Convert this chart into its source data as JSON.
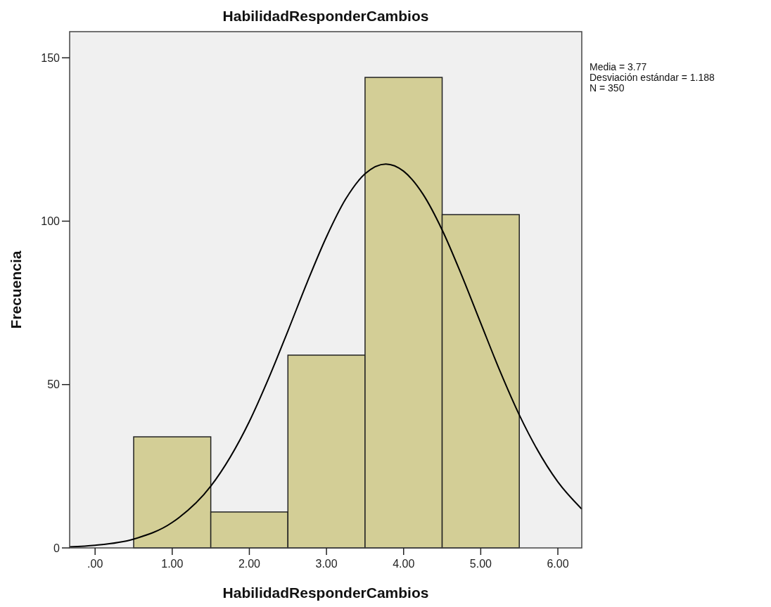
{
  "chart_data": {
    "type": "histogram",
    "title": "HabilidadResponderCambios",
    "xlabel": "HabilidadResponderCambios",
    "ylabel": "Frecuencia",
    "bins": [
      0.5,
      1.5,
      2.5,
      3.5,
      4.5,
      5.5
    ],
    "values": [
      34,
      11,
      59,
      144,
      102
    ],
    "color": "#d3ce96",
    "series": [
      {
        "type": "line",
        "color": "#000000",
        "x": [
          -0.33,
          0,
          0.5,
          1,
          1.5,
          2,
          2.25,
          2.5,
          2.75,
          3,
          3.25,
          3.5,
          3.77,
          4,
          4.25,
          4.5,
          4.75,
          5,
          5.25,
          5.5,
          6,
          6.31
        ],
        "values": [
          0.3,
          0.8,
          2.7,
          7.8,
          18.9,
          38.7,
          51.9,
          66.4,
          81.3,
          95.2,
          106.8,
          114.5,
          117.5,
          115.3,
          108.3,
          97.3,
          83.6,
          68.8,
          54.1,
          40.7,
          20.2,
          11.9
        ]
      }
    ],
    "xlim": [
      -0.33,
      6.31
    ],
    "ylim": [
      0,
      158
    ],
    "xticks": [
      {
        "value": 0,
        "label": ".00"
      },
      {
        "value": 1,
        "label": "1.00"
      },
      {
        "value": 2,
        "label": "2.00"
      },
      {
        "value": 3,
        "label": "3.00"
      },
      {
        "value": 4,
        "label": "4.00"
      },
      {
        "value": 5,
        "label": "5.00"
      },
      {
        "value": 6,
        "label": "6.00"
      }
    ],
    "yticks": [
      0,
      50,
      100,
      150
    ],
    "grid": false,
    "annotations": [
      "Media = 3.77",
      "Desviación estándar = 1.188",
      "N = 350"
    ]
  }
}
